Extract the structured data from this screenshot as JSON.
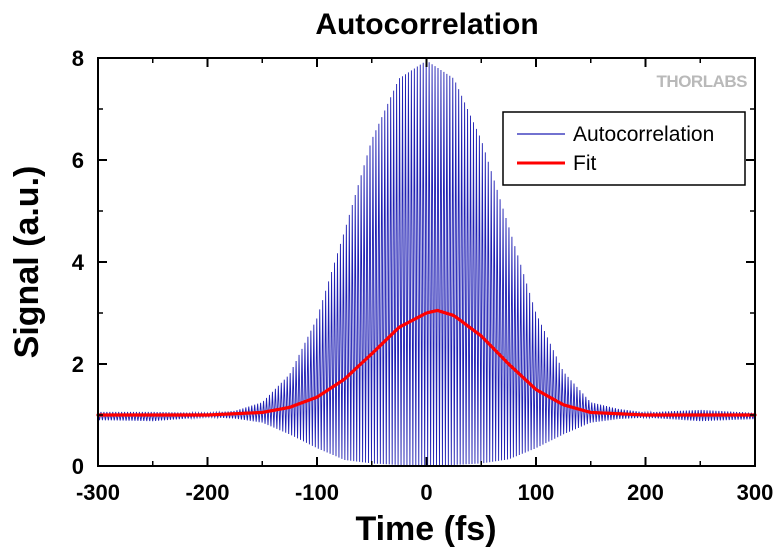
{
  "chart_data": {
    "type": "line",
    "title": "Autocorrelation",
    "xlabel": "Time (fs)",
    "ylabel": "Signal (a.u.)",
    "xlim": [
      -300,
      300
    ],
    "ylim": [
      0,
      8
    ],
    "xticks": [
      -300,
      -200,
      -100,
      0,
      100,
      200,
      300
    ],
    "yticks": [
      0,
      2,
      4,
      6,
      8
    ],
    "grid": false,
    "legend_position": "top-right",
    "watermark": "THORLABS",
    "series": [
      {
        "name": "Autocorrelation",
        "color": "#1f1fb4",
        "style": "thin oscillating trace",
        "x": [
          -300,
          -250,
          -200,
          -175,
          -150,
          -125,
          -100,
          -75,
          -50,
          -25,
          0,
          25,
          50,
          75,
          100,
          125,
          150,
          175,
          200,
          250,
          300
        ],
        "y_upper": [
          1.06,
          1.06,
          1.04,
          1.08,
          1.25,
          1.8,
          2.9,
          4.6,
          6.4,
          7.6,
          7.95,
          7.6,
          6.4,
          4.7,
          3.0,
          1.85,
          1.25,
          1.12,
          1.05,
          1.1,
          1.04
        ],
        "y_lower": [
          0.9,
          0.88,
          0.96,
          0.93,
          0.85,
          0.62,
          0.35,
          0.12,
          0.05,
          0.02,
          0.0,
          0.02,
          0.05,
          0.13,
          0.35,
          0.62,
          0.85,
          0.92,
          0.95,
          0.88,
          0.92
        ]
      },
      {
        "name": "Fit",
        "color": "#ff0000",
        "style": "thick smooth line",
        "x": [
          -300,
          -250,
          -200,
          -150,
          -125,
          -100,
          -75,
          -50,
          -25,
          0,
          10,
          25,
          50,
          75,
          100,
          125,
          150,
          200,
          250,
          300
        ],
        "y": [
          1.0,
          1.0,
          1.0,
          1.05,
          1.15,
          1.35,
          1.7,
          2.2,
          2.72,
          3.0,
          3.05,
          2.95,
          2.55,
          2.0,
          1.5,
          1.2,
          1.05,
          1.0,
          1.0,
          1.0
        ]
      }
    ]
  }
}
